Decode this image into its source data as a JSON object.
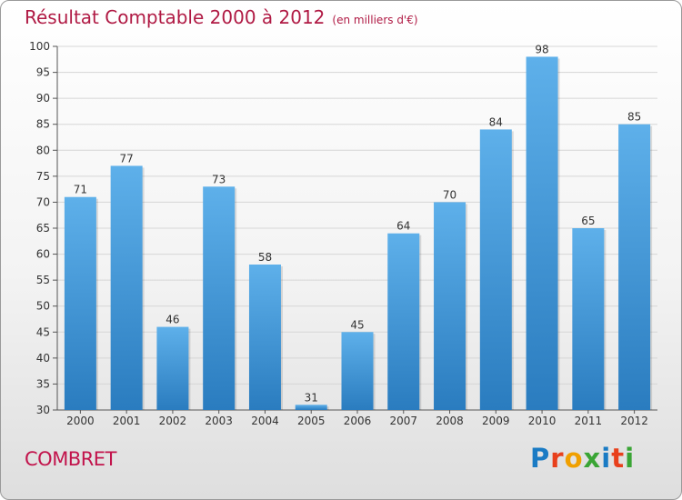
{
  "title": "Résultat Comptable 2000 à 2012",
  "subtitle": "(en milliers d'€)",
  "commune": "COMBRET",
  "logo": {
    "letters": [
      "P",
      "r",
      "o",
      "x",
      "i",
      "t",
      "i"
    ],
    "colors": [
      "#1a7bc4",
      "#e8401c",
      "#f0a000",
      "#3aa535",
      "#1a7bc4",
      "#e8401c",
      "#3aa535"
    ]
  },
  "colors": {
    "bar_top": "#5eb0ea",
    "bar_bottom": "#2a7cbf",
    "title": "#b01a44",
    "grid": "#d6d6d6"
  },
  "chart_data": {
    "type": "bar",
    "categories": [
      "2000",
      "2001",
      "2002",
      "2003",
      "2004",
      "2005",
      "2006",
      "2007",
      "2008",
      "2009",
      "2010",
      "2011",
      "2012"
    ],
    "values": [
      71,
      77,
      46,
      73,
      58,
      31,
      45,
      64,
      70,
      84,
      98,
      65,
      85
    ],
    "ylim": [
      30,
      100
    ],
    "yticks": [
      30,
      35,
      40,
      45,
      50,
      55,
      60,
      65,
      70,
      75,
      80,
      85,
      90,
      95,
      100
    ],
    "grid": true,
    "data_labels": true
  }
}
